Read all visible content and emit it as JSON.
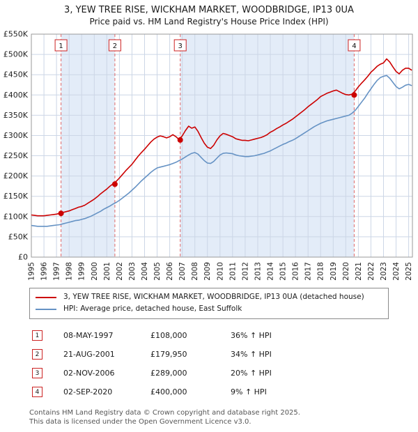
{
  "title": {
    "line1": "3, YEW TREE RISE, WICKHAM MARKET, WOODBRIDGE, IP13 0UA",
    "line2": "Price paid vs. HM Land Registry's House Price Index (HPI)"
  },
  "chart_data": {
    "type": "line",
    "xlim": [
      1995,
      2025.3
    ],
    "ylim_k": [
      0,
      550
    ],
    "x_tick_labels": [
      "1995",
      "1996",
      "1997",
      "1998",
      "1999",
      "2000",
      "2001",
      "2002",
      "2003",
      "2004",
      "2005",
      "2006",
      "2007",
      "2008",
      "2009",
      "2010",
      "2011",
      "2012",
      "2013",
      "2014",
      "2015",
      "2016",
      "2017",
      "2018",
      "2019",
      "2020",
      "2021",
      "2022",
      "2023",
      "2024",
      "2025"
    ],
    "y_tick_values_k": [
      0,
      50,
      100,
      150,
      200,
      250,
      300,
      350,
      400,
      450,
      500,
      550
    ],
    "y_tick_labels": [
      "£0",
      "£50K",
      "£100K",
      "£150K",
      "£200K",
      "£250K",
      "£300K",
      "£350K",
      "£400K",
      "£450K",
      "£500K",
      "£550K"
    ],
    "x_start": 1995,
    "x_step": 0.25,
    "series": [
      {
        "name": "3, YEW TREE RISE, WICKHAM MARKET, WOODBRIDGE, IP13 0UA (detached house)",
        "color": "#cc0000",
        "values_k": [
          104,
          103,
          102,
          102,
          102,
          103,
          104,
          105,
          106,
          108,
          110,
          112,
          114,
          117,
          120,
          123,
          125,
          128,
          133,
          138,
          143,
          149,
          156,
          162,
          168,
          175,
          181,
          187,
          195,
          204,
          213,
          221,
          229,
          239,
          249,
          258,
          266,
          275,
          284,
          291,
          296,
          299,
          297,
          294,
          297,
          302,
          297,
          290,
          299,
          312,
          323,
          318,
          321,
          310,
          295,
          281,
          271,
          268,
          276,
          289,
          299,
          305,
          303,
          300,
          297,
          292,
          290,
          288,
          288,
          287,
          289,
          291,
          293,
          295,
          298,
          302,
          308,
          312,
          317,
          321,
          326,
          330,
          335,
          340,
          346,
          352,
          358,
          364,
          371,
          377,
          383,
          389,
          396,
          400,
          404,
          407,
          410,
          412,
          408,
          404,
          401,
          400,
          402,
          410,
          420,
          429,
          437,
          446,
          456,
          463,
          471,
          476,
          479,
          489,
          481,
          469,
          458,
          452,
          461,
          466,
          466,
          461
        ]
      },
      {
        "name": "HPI: Average price, detached house, East Suffolk",
        "color": "#6592c4",
        "values_k": [
          78,
          77,
          76,
          76,
          76,
          76,
          77,
          78,
          79,
          80,
          82,
          84,
          86,
          88,
          90,
          91,
          93,
          95,
          98,
          101,
          105,
          109,
          113,
          118,
          122,
          126,
          131,
          135,
          140,
          146,
          152,
          158,
          165,
          172,
          180,
          188,
          195,
          202,
          209,
          215,
          220,
          222,
          224,
          226,
          228,
          231,
          234,
          238,
          242,
          247,
          252,
          256,
          258,
          254,
          246,
          238,
          232,
          231,
          236,
          244,
          252,
          256,
          257,
          256,
          255,
          252,
          250,
          249,
          248,
          248,
          249,
          250,
          252,
          254,
          256,
          259,
          262,
          266,
          270,
          274,
          278,
          281,
          285,
          288,
          292,
          297,
          302,
          307,
          312,
          317,
          322,
          326,
          330,
          333,
          336,
          338,
          340,
          342,
          344,
          346,
          348,
          350,
          355,
          362,
          372,
          382,
          392,
          404,
          415,
          426,
          436,
          443,
          446,
          448,
          441,
          431,
          421,
          415,
          419,
          424,
          426,
          423
        ]
      }
    ],
    "sales": [
      {
        "num": "1",
        "x": 1997.36,
        "price_k": 108
      },
      {
        "num": "2",
        "x": 2001.64,
        "price_k": 179.95
      },
      {
        "num": "3",
        "x": 2006.84,
        "price_k": 289
      },
      {
        "num": "4",
        "x": 2020.67,
        "price_k": 400
      }
    ],
    "bands": [
      [
        1997.36,
        2001.64
      ],
      [
        2006.84,
        2020.67
      ]
    ],
    "colors": {
      "red": "#cc0000",
      "blue": "#6592c4",
      "dashed": "#e06a6a",
      "band": "#e3ecf8",
      "grid": "#ccd6e6",
      "frame": "#9a9a9a",
      "tick_text": "#222222"
    }
  },
  "legend": {
    "items": [
      {
        "label": "3, YEW TREE RISE, WICKHAM MARKET, WOODBRIDGE, IP13 0UA (detached house)",
        "color": "#cc0000"
      },
      {
        "label": "HPI: Average price, detached house, East Suffolk",
        "color": "#6592c4"
      }
    ]
  },
  "table": {
    "rows": [
      {
        "num": "1",
        "date": "08-MAY-1997",
        "price": "£108,000",
        "hpi": "36% ↑ HPI"
      },
      {
        "num": "2",
        "date": "21-AUG-2001",
        "price": "£179,950",
        "hpi": "34% ↑ HPI"
      },
      {
        "num": "3",
        "date": "02-NOV-2006",
        "price": "£289,000",
        "hpi": "20% ↑ HPI"
      },
      {
        "num": "4",
        "date": "02-SEP-2020",
        "price": "£400,000",
        "hpi": "9% ↑ HPI"
      }
    ]
  },
  "footer": {
    "line1": "Contains HM Land Registry data © Crown copyright and database right 2025.",
    "line2": "This data is licensed under the Open Government Licence v3.0."
  }
}
